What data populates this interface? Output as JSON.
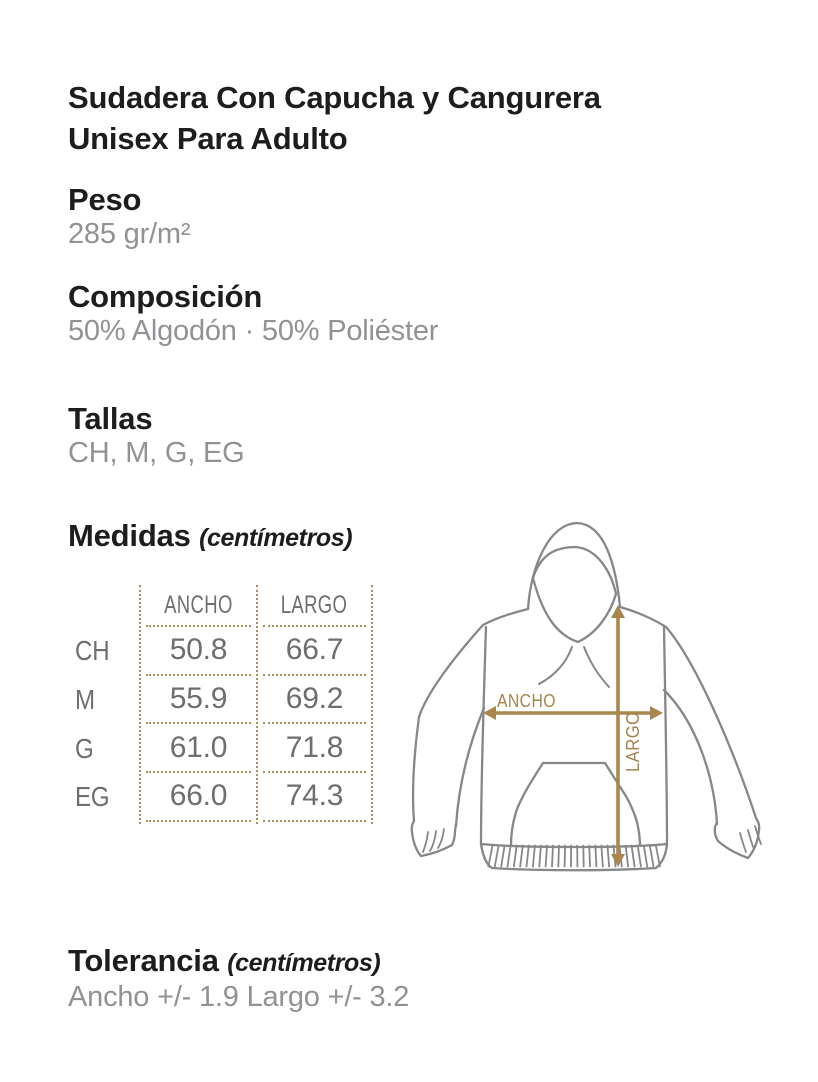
{
  "page": {
    "title": "Sudadera Con Capucha y Cangurera Unisex Para Adulto"
  },
  "sections": {
    "peso": {
      "heading": "Peso",
      "value": "285 gr/m²"
    },
    "composicion": {
      "heading": "Composición",
      "value": "50% Algodón · 50% Poliéster"
    },
    "tallas": {
      "heading": "Tallas",
      "value": "CH, M, G, EG"
    },
    "medidas": {
      "heading": "Medidas",
      "unit_note": "(centímetros)"
    },
    "tolerancia": {
      "heading": "Tolerancia",
      "unit_note": "(centímetros)",
      "value": "Ancho +/- 1.9 Largo +/- 3.2"
    }
  },
  "size_table": {
    "columns": [
      "ANCHO",
      "LARGO"
    ],
    "rows": [
      {
        "size": "CH",
        "ancho": "50.8",
        "largo": "66.7"
      },
      {
        "size": "M",
        "ancho": "55.9",
        "largo": "69.2"
      },
      {
        "size": "G",
        "ancho": "61.0",
        "largo": "71.8"
      },
      {
        "size": "EG",
        "ancho": "66.0",
        "largo": "74.3"
      }
    ]
  },
  "diagram": {
    "width_label": "ANCHO",
    "length_label": "LARGO"
  },
  "colors": {
    "heading_black": "#1d1d1b",
    "body_text_gray": "#909295",
    "table_text_gray": "#6d6e71",
    "dotted_line_tan": "#b08d5c",
    "arrow_tan": "#a8874f",
    "hoodie_outline_gray": "#85878a",
    "background": "#ffffff"
  }
}
